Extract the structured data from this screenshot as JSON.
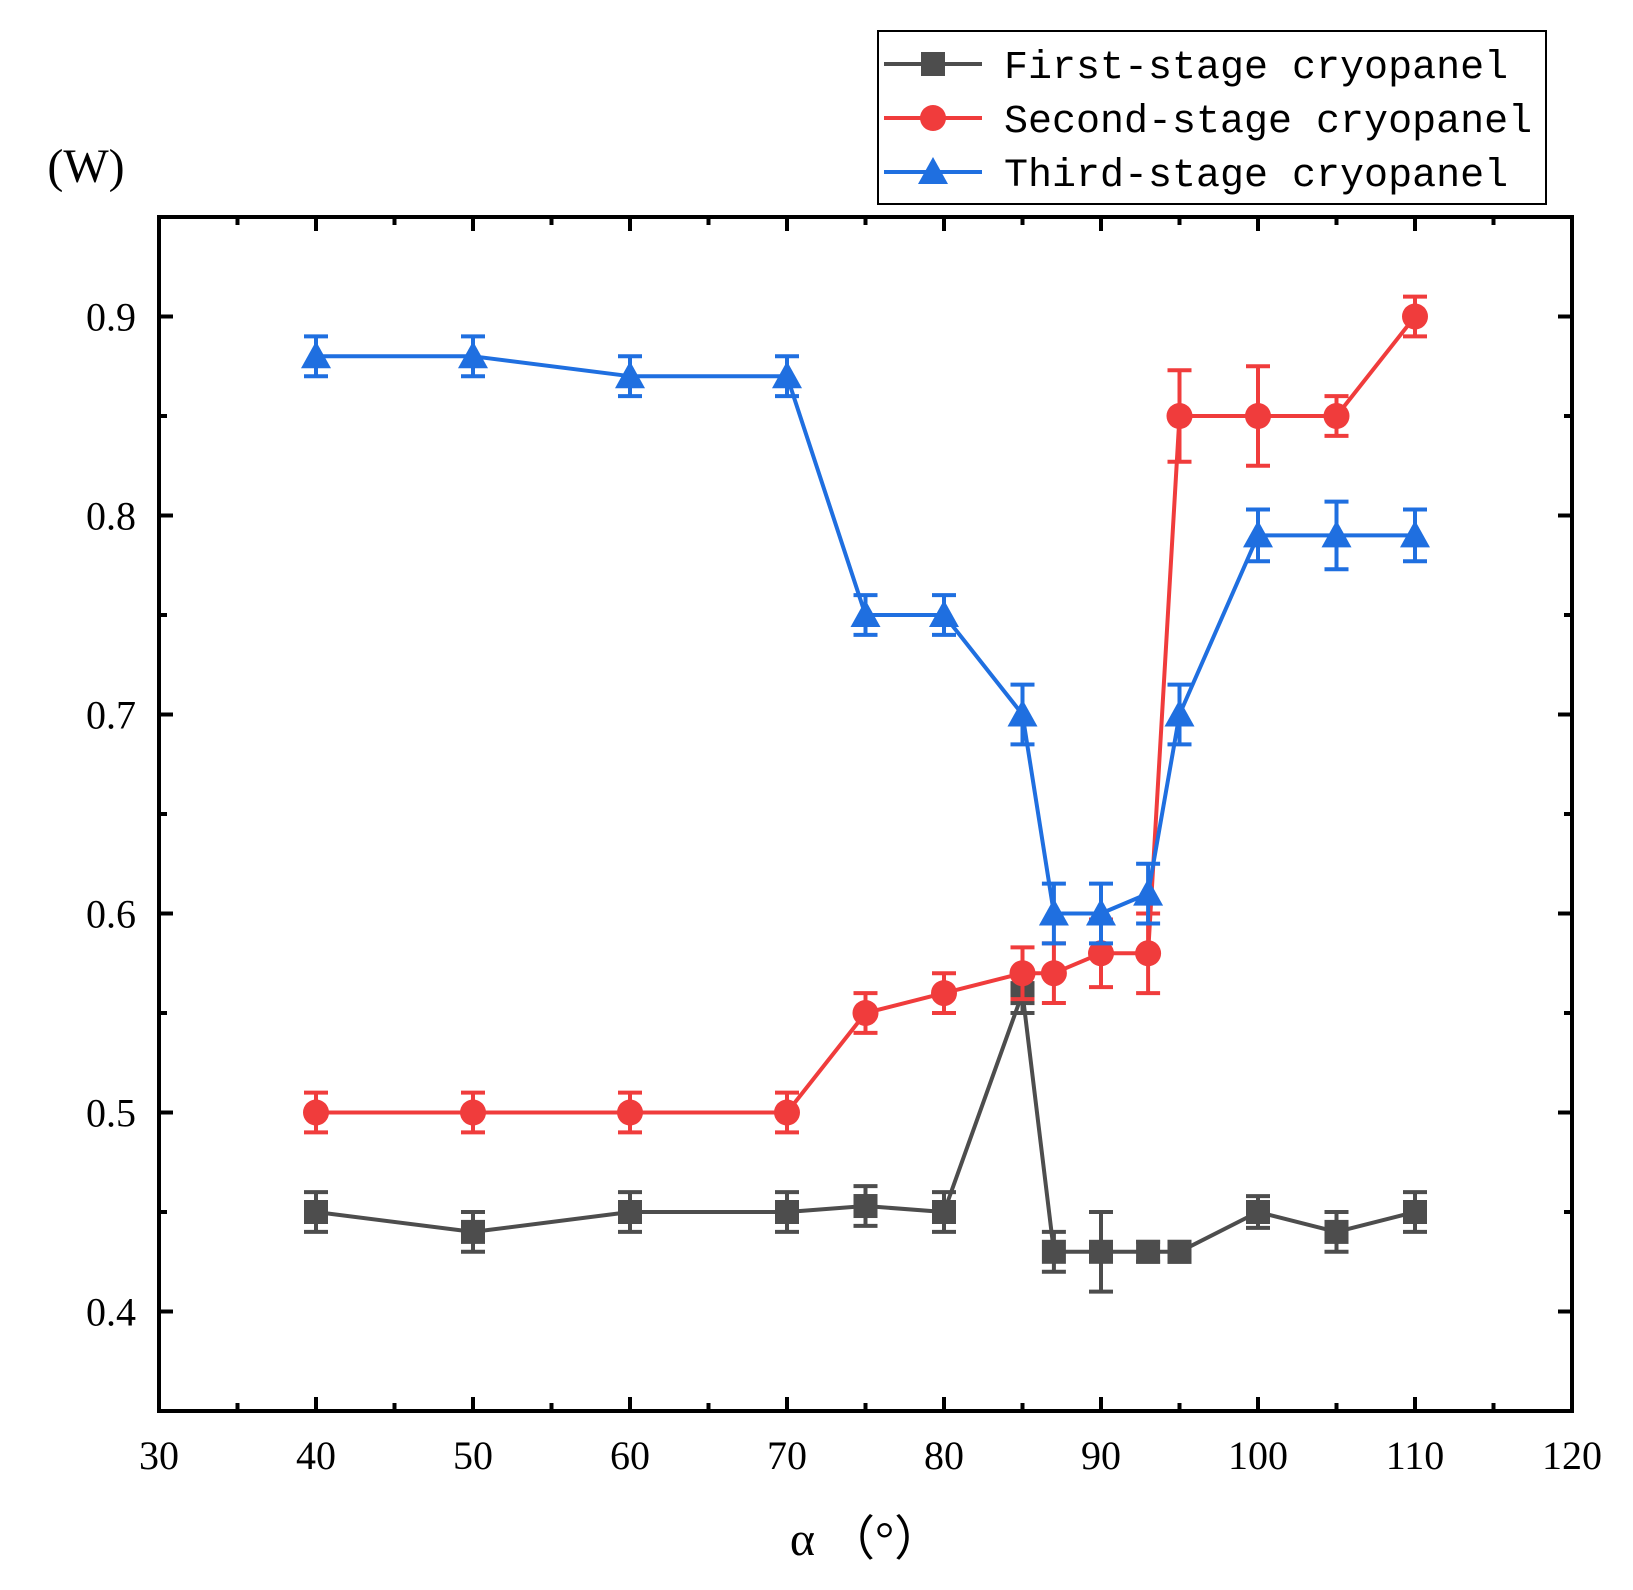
{
  "chart_data": {
    "type": "line",
    "xlabel": "α （°）",
    "ylabel": "(W)",
    "xlim": [
      30,
      120
    ],
    "ylim": [
      0.35,
      0.95
    ],
    "xticks": [
      30,
      40,
      50,
      60,
      70,
      80,
      90,
      100,
      110,
      120
    ],
    "yticks": [
      0.4,
      0.5,
      0.6,
      0.7,
      0.8,
      0.9
    ],
    "ytick_labels": [
      "0.4",
      "0.5",
      "0.6",
      "0.7",
      "0.8",
      "0.9"
    ],
    "grid": false,
    "legend_position": "top-right",
    "x": [
      40,
      50,
      60,
      70,
      75,
      80,
      85,
      87,
      90,
      93,
      95,
      100,
      105,
      110
    ],
    "series": [
      {
        "name": "First-stage cryopanel",
        "color": "#4d4d4d",
        "marker": "square",
        "values": [
          0.45,
          0.44,
          0.45,
          0.45,
          0.453,
          0.45,
          0.56,
          0.43,
          0.43,
          0.43,
          0.43,
          0.45,
          0.44,
          0.45
        ],
        "errors": [
          0.01,
          0.01,
          0.01,
          0.01,
          0.01,
          0.01,
          0.01,
          0.01,
          0.02,
          0.005,
          0.005,
          0.008,
          0.01,
          0.01
        ]
      },
      {
        "name": "Second-stage cryopanel",
        "color": "#f03c3c",
        "marker": "circle",
        "values": [
          0.5,
          0.5,
          0.5,
          0.5,
          0.55,
          0.56,
          0.57,
          0.57,
          0.58,
          0.58,
          0.85,
          0.85,
          0.85,
          0.9
        ],
        "errors": [
          0.01,
          0.01,
          0.01,
          0.01,
          0.01,
          0.01,
          0.013,
          0.015,
          0.017,
          0.02,
          0.023,
          0.025,
          0.01,
          0.01
        ]
      },
      {
        "name": "Third-stage cryopanel",
        "color": "#1f6fe0",
        "marker": "triangle",
        "values": [
          0.88,
          0.88,
          0.87,
          0.87,
          0.75,
          0.75,
          0.7,
          0.6,
          0.6,
          0.61,
          0.7,
          0.79,
          0.79,
          0.79
        ],
        "errors": [
          0.01,
          0.01,
          0.01,
          0.01,
          0.01,
          0.01,
          0.015,
          0.015,
          0.015,
          0.015,
          0.015,
          0.013,
          0.017,
          0.013
        ]
      }
    ]
  }
}
